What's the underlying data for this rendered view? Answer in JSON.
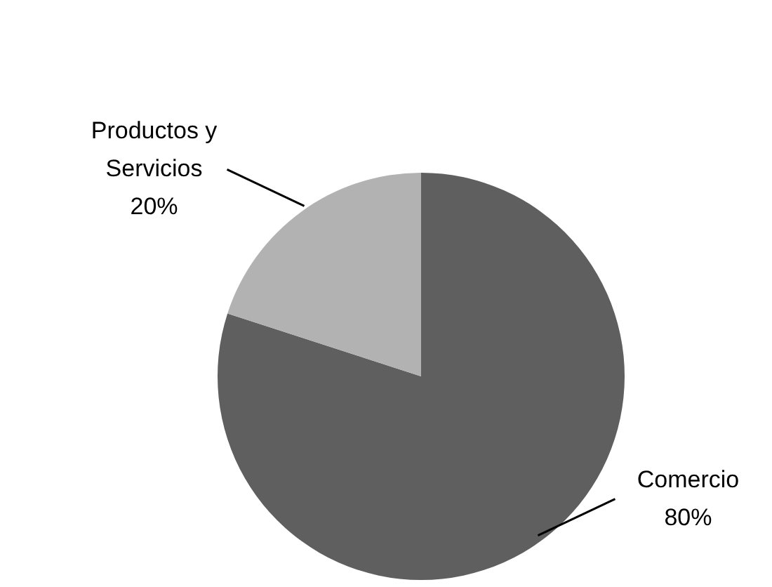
{
  "chart_data": {
    "type": "pie",
    "categories": [
      "Comercio",
      "Productos y Servicios"
    ],
    "values": [
      80,
      20
    ],
    "colors": [
      "#5f5f5f",
      "#b2b2b2"
    ],
    "value_labels": [
      "80%",
      "20%"
    ]
  }
}
